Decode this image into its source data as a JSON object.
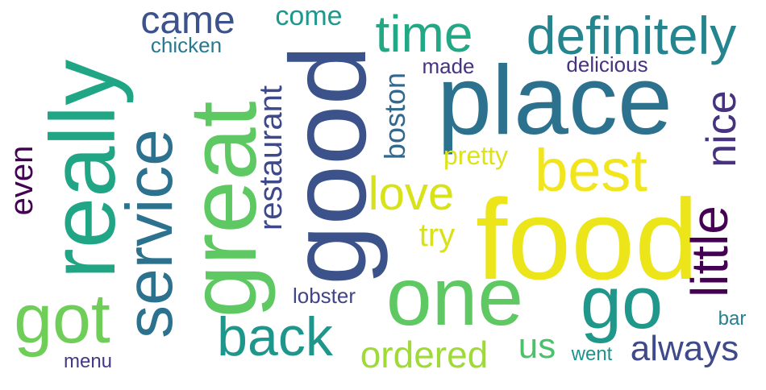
{
  "words": {
    "food": {
      "text": "food",
      "color": "#ebe51a"
    },
    "place": {
      "text": "place",
      "color": "#2c728e"
    },
    "good": {
      "text": "good",
      "color": "#3b528b"
    },
    "great": {
      "text": "great",
      "color": "#5ec962"
    },
    "really": {
      "text": "really",
      "color": "#21a685"
    },
    "one": {
      "text": "one",
      "color": "#5ec962"
    },
    "service": {
      "text": "service",
      "color": "#2c728e"
    },
    "definitely": {
      "text": "definitely",
      "color": "#25858e"
    },
    "time": {
      "text": "time",
      "color": "#22a884"
    },
    "best": {
      "text": "best",
      "color": "#f1e51d"
    },
    "go": {
      "text": "go",
      "color": "#1f988b"
    },
    "got": {
      "text": "got",
      "color": "#6ece58"
    },
    "back": {
      "text": "back",
      "color": "#1f968b"
    },
    "little": {
      "text": "little",
      "color": "#440154"
    },
    "love": {
      "text": "love",
      "color": "#d8e219"
    },
    "nice": {
      "text": "nice",
      "color": "#46327e"
    },
    "restaurant": {
      "text": "restaurant",
      "color": "#3e4989"
    },
    "came": {
      "text": "came",
      "color": "#3b528b"
    },
    "ordered": {
      "text": "ordered",
      "color": "#a0da39"
    },
    "always": {
      "text": "always",
      "color": "#3e4a89"
    },
    "boston": {
      "text": "boston",
      "color": "#31688e"
    },
    "even": {
      "text": "even",
      "color": "#440154"
    },
    "us": {
      "text": "us",
      "color": "#4ac16d"
    },
    "come": {
      "text": "come",
      "color": "#1f988b"
    },
    "try": {
      "text": "try",
      "color": "#d8e219"
    },
    "pretty": {
      "text": "pretty",
      "color": "#dde318"
    },
    "lobster": {
      "text": "lobster",
      "color": "#414487"
    },
    "chicken": {
      "text": "chicken",
      "color": "#2a788e"
    },
    "delicious": {
      "text": "delicious",
      "color": "#46337e"
    },
    "made": {
      "text": "made",
      "color": "#46327e"
    },
    "menu": {
      "text": "menu",
      "color": "#443983"
    },
    "went": {
      "text": "went",
      "color": "#21918c"
    },
    "bar": {
      "text": "bar",
      "color": "#277f8e"
    }
  }
}
